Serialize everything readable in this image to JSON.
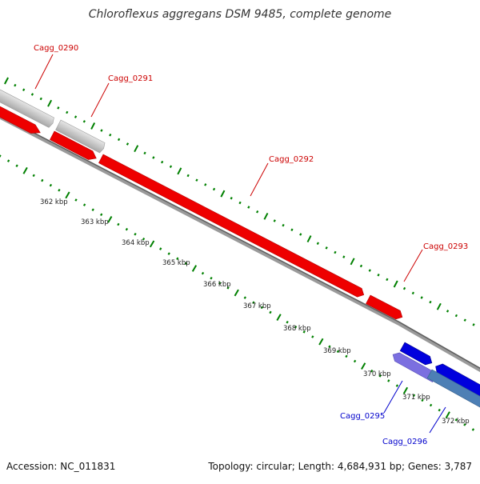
{
  "title": "Chloroflexus aggregans DSM 9485, complete genome",
  "footer": {
    "accession": "Accession: NC_011831",
    "summary": "Topology: circular; Length: 4,684,931 bp; Genes: 3,787"
  },
  "colors": {
    "forward_gene": "#ee0000",
    "reverse_gene": "#0000dd",
    "pseudo_gene": "#bbbbbb",
    "label_forward": "#cc0000",
    "label_reverse": "#0000cc",
    "ticks": "#008000",
    "backbone": "#777777"
  },
  "scale_labels": [
    "362 kbp",
    "363 kbp",
    "364 kbp",
    "365 kbp",
    "366 kbp",
    "367 kbp",
    "368 kbp",
    "369 kbp",
    "370 kbp",
    "371 kbp",
    "372 kbp"
  ],
  "genes": [
    {
      "name": "Cagg_0290",
      "strand": "forward",
      "type": "pseudo"
    },
    {
      "name": "Cagg_0291",
      "strand": "forward",
      "type": "pseudo"
    },
    {
      "name": "Cagg_0292",
      "strand": "forward",
      "type": "cds"
    },
    {
      "name": "Cagg_0293",
      "strand": "forward",
      "type": "cds"
    },
    {
      "name": "Cagg_0295",
      "strand": "reverse",
      "type": "rna"
    },
    {
      "name": "Cagg_0296",
      "strand": "reverse",
      "type": "cds"
    }
  ]
}
